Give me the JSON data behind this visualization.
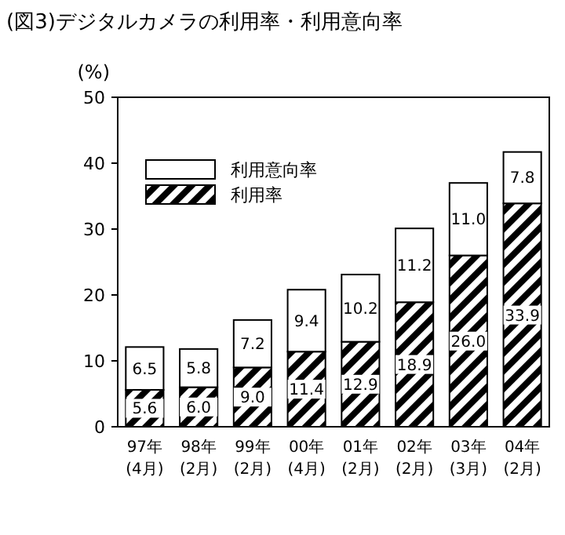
{
  "chart_data": {
    "type": "bar",
    "title": "(図3)デジタルカメラの利用率・利用意向率",
    "ylabel": "(%)",
    "categories": [
      "97年\n(4月)",
      "98年\n(2月)",
      "99年\n(2月)",
      "00年\n(4月)",
      "01年\n(2月)",
      "02年\n(2月)",
      "03年\n(3月)",
      "04年\n(2月)"
    ],
    "series": [
      {
        "name": "利用率",
        "color": "#000000",
        "values": [
          5.6,
          6.0,
          9.0,
          11.4,
          12.9,
          18.9,
          26.0,
          33.9
        ],
        "value_labels": [
          "5.6",
          "6.0",
          "9.0",
          "11.4",
          "12.9",
          "18.9",
          "26.0",
          "33.9"
        ]
      },
      {
        "name": "利用意向率",
        "color": "#ffffff",
        "values": [
          6.5,
          5.8,
          7.2,
          9.4,
          10.2,
          11.2,
          11.0,
          7.8
        ],
        "value_labels": [
          "6.5",
          "5.8",
          "7.2",
          "9.4",
          "10.2",
          "11.2",
          "11.0",
          "7.8"
        ]
      }
    ],
    "stacked": true,
    "legend": "top left",
    "ylim": [
      0,
      50
    ],
    "yticks": [
      0,
      10,
      20,
      30,
      40,
      50
    ]
  }
}
